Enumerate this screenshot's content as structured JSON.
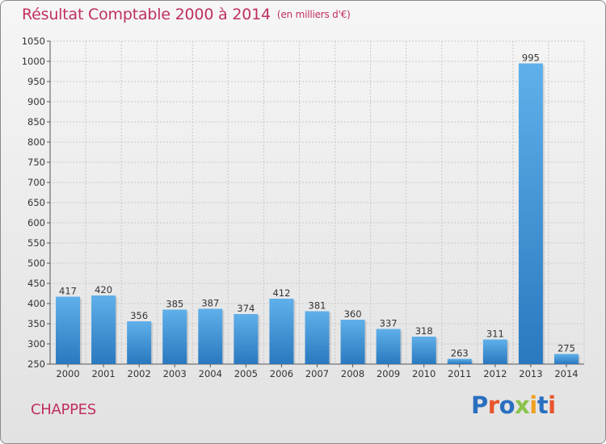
{
  "header": {
    "title": "Résultat Comptable 2000 à 2014",
    "subtitle": "(en milliers d'€)"
  },
  "footer": {
    "commune": "CHAPPES",
    "logo": "Proxiti",
    "logo_colors": [
      "#2a6fc0",
      "#e8552b",
      "#2a6fc0",
      "#8bc34a",
      "#f0a020",
      "#2a6fc0",
      "#e8552b"
    ]
  },
  "colors": {
    "bar_top": "#5fb0ea",
    "bar_bottom": "#2a78bf",
    "accent": "#c0305d",
    "grid": "#c8c8c8"
  },
  "chart_data": {
    "type": "bar",
    "title": "Résultat Comptable 2000 à 2014",
    "subtitle": "(en milliers d'€)",
    "categories": [
      "2000",
      "2001",
      "2002",
      "2003",
      "2004",
      "2005",
      "2006",
      "2007",
      "2008",
      "2009",
      "2010",
      "2011",
      "2012",
      "2013",
      "2014"
    ],
    "values": [
      417,
      420,
      356,
      385,
      387,
      374,
      412,
      381,
      360,
      337,
      318,
      263,
      311,
      995,
      275
    ],
    "ylim": [
      250,
      1050
    ],
    "yticks": [
      250,
      300,
      350,
      400,
      450,
      500,
      550,
      600,
      650,
      700,
      750,
      800,
      850,
      900,
      950,
      1000,
      1050
    ],
    "grid": true,
    "data_labels": true
  }
}
